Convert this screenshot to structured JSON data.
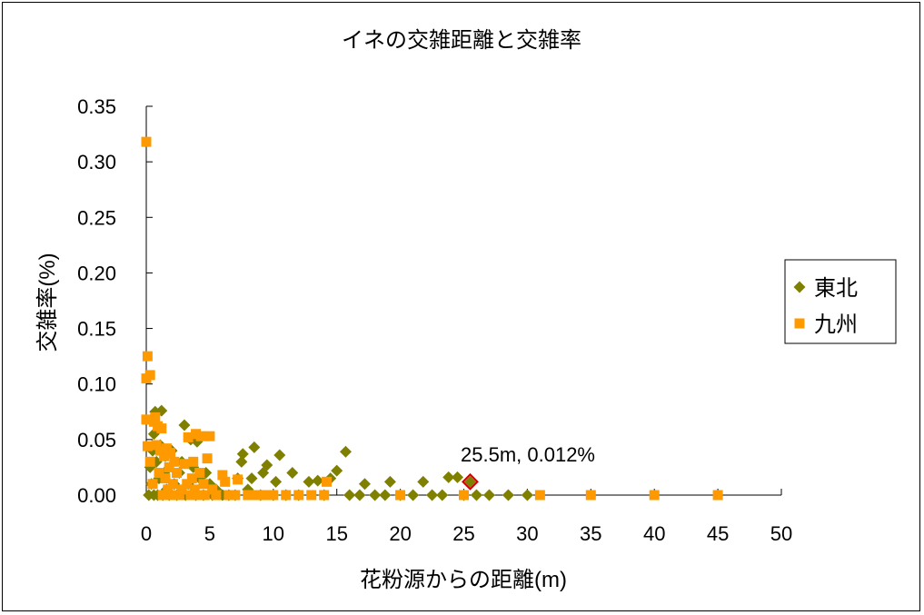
{
  "chart_data": {
    "type": "scatter",
    "title": "イネの交雑距離と交雑率",
    "xlabel": "花粉源からの距離(m)",
    "ylabel": "交雑率(%)",
    "xlim": [
      0,
      50
    ],
    "ylim": [
      0,
      0.35
    ],
    "xticks": [
      "0",
      "5",
      "10",
      "15",
      "20",
      "25",
      "30",
      "35",
      "40",
      "45",
      "50"
    ],
    "yticks": [
      "0.00",
      "0.05",
      "0.10",
      "0.15",
      "0.20",
      "0.25",
      "0.30",
      "0.35"
    ],
    "grid": false,
    "legend_position": "right",
    "annotation": {
      "text": "25.5m, 0.012%",
      "x": 25.5,
      "y": 0.012,
      "color": "#cc0000"
    },
    "series": [
      {
        "name": "東北",
        "marker": "diamond",
        "color": "#808000",
        "points": [
          [
            0.2,
            0.0
          ],
          [
            0.3,
            0.025
          ],
          [
            0.4,
            0.01
          ],
          [
            0.5,
            0.04
          ],
          [
            0.6,
            0.0
          ],
          [
            0.6,
            0.055
          ],
          [
            0.7,
            0.075
          ],
          [
            0.8,
            0.03
          ],
          [
            0.9,
            0.0
          ],
          [
            1.0,
            0.015
          ],
          [
            1.1,
            0.045
          ],
          [
            1.2,
            0.076
          ],
          [
            1.3,
            0.0
          ],
          [
            1.4,
            0.02
          ],
          [
            1.5,
            0.035
          ],
          [
            1.6,
            0.005
          ],
          [
            1.8,
            0.0
          ],
          [
            2.0,
            0.04
          ],
          [
            2.2,
            0.01
          ],
          [
            2.4,
            0.0
          ],
          [
            2.6,
            0.02
          ],
          [
            2.8,
            0.03
          ],
          [
            3.0,
            0.063
          ],
          [
            3.1,
            0.0
          ],
          [
            3.3,
            0.01
          ],
          [
            3.5,
            0.05
          ],
          [
            3.7,
            0.025
          ],
          [
            3.9,
            0.0
          ],
          [
            4.0,
            0.048
          ],
          [
            4.2,
            0.015
          ],
          [
            4.5,
            0.0
          ],
          [
            4.7,
            0.02
          ],
          [
            5.0,
            0.01
          ],
          [
            5.2,
            0.0
          ],
          [
            5.5,
            0.005
          ],
          [
            6.0,
            0.0
          ],
          [
            6.5,
            0.0
          ],
          [
            7.0,
            0.0
          ],
          [
            7.2,
            0.015
          ],
          [
            7.5,
            0.03
          ],
          [
            7.6,
            0.037
          ],
          [
            8.0,
            0.005
          ],
          [
            8.3,
            0.015
          ],
          [
            8.5,
            0.043
          ],
          [
            9.0,
            0.0
          ],
          [
            9.2,
            0.02
          ],
          [
            9.5,
            0.027
          ],
          [
            10.0,
            0.0
          ],
          [
            10.2,
            0.012
          ],
          [
            10.5,
            0.036
          ],
          [
            11.0,
            0.0
          ],
          [
            11.5,
            0.02
          ],
          [
            12.0,
            0.0
          ],
          [
            12.8,
            0.012
          ],
          [
            13.5,
            0.013
          ],
          [
            14.0,
            0.0
          ],
          [
            14.5,
            0.015
          ],
          [
            15.0,
            0.022
          ],
          [
            15.7,
            0.039
          ],
          [
            16.0,
            0.0
          ],
          [
            16.8,
            0.0
          ],
          [
            17.2,
            0.01
          ],
          [
            18.0,
            0.0
          ],
          [
            18.8,
            0.0
          ],
          [
            19.2,
            0.012
          ],
          [
            20.0,
            0.0
          ],
          [
            21.0,
            0.0
          ],
          [
            21.8,
            0.012
          ],
          [
            22.5,
            0.0
          ],
          [
            23.3,
            0.0
          ],
          [
            23.8,
            0.016
          ],
          [
            24.5,
            0.016
          ],
          [
            25.0,
            0.0
          ],
          [
            25.5,
            0.012
          ],
          [
            26.0,
            0.0
          ],
          [
            27.0,
            0.0
          ],
          [
            28.5,
            0.0
          ],
          [
            30.0,
            0.0
          ]
        ]
      },
      {
        "name": "九州",
        "marker": "square",
        "color": "#ff9900",
        "points": [
          [
            0.0,
            0.318
          ],
          [
            0.1,
            0.125
          ],
          [
            0.0,
            0.105
          ],
          [
            0.3,
            0.108
          ],
          [
            0.0,
            0.068
          ],
          [
            0.1,
            0.044
          ],
          [
            0.3,
            0.03
          ],
          [
            0.5,
            0.01
          ],
          [
            0.6,
            0.066
          ],
          [
            0.7,
            0.07
          ],
          [
            0.8,
            0.045
          ],
          [
            0.9,
            0.062
          ],
          [
            1.0,
            0.02
          ],
          [
            1.1,
            0.04
          ],
          [
            1.2,
            0.06
          ],
          [
            1.3,
            0.0
          ],
          [
            1.4,
            0.035
          ],
          [
            1.5,
            0.015
          ],
          [
            1.6,
            0.042
          ],
          [
            1.7,
            0.005
          ],
          [
            1.8,
            0.025
          ],
          [
            1.9,
            0.038
          ],
          [
            2.0,
            0.0
          ],
          [
            2.1,
            0.01
          ],
          [
            2.2,
            0.03
          ],
          [
            2.4,
            0.02
          ],
          [
            2.6,
            0.0
          ],
          [
            2.8,
            0.005
          ],
          [
            3.0,
            0.028
          ],
          [
            3.2,
            0.01
          ],
          [
            3.3,
            0.052
          ],
          [
            3.5,
            0.0
          ],
          [
            3.6,
            0.015
          ],
          [
            3.7,
            0.03
          ],
          [
            3.8,
            0.005
          ],
          [
            3.9,
            0.055
          ],
          [
            4.0,
            0.0
          ],
          [
            4.2,
            0.02
          ],
          [
            4.3,
            0.053
          ],
          [
            4.5,
            0.01
          ],
          [
            4.6,
            0.0
          ],
          [
            4.8,
            0.033
          ],
          [
            5.0,
            0.053
          ],
          [
            5.2,
            0.005
          ],
          [
            5.5,
            0.0
          ],
          [
            6.0,
            0.018
          ],
          [
            6.2,
            0.012
          ],
          [
            6.5,
            0.0
          ],
          [
            7.0,
            0.0
          ],
          [
            7.2,
            0.014
          ],
          [
            8.0,
            0.0
          ],
          [
            8.5,
            0.0
          ],
          [
            9.0,
            0.0
          ],
          [
            9.5,
            0.0
          ],
          [
            10.0,
            0.0
          ],
          [
            11.0,
            0.0
          ],
          [
            12.0,
            0.0
          ],
          [
            13.0,
            0.0
          ],
          [
            14.0,
            0.0
          ],
          [
            14.2,
            0.012
          ],
          [
            20.0,
            0.0
          ],
          [
            25.0,
            0.0
          ],
          [
            31.0,
            0.0
          ],
          [
            35.0,
            0.0
          ],
          [
            40.0,
            0.0
          ],
          [
            45.0,
            0.0
          ]
        ]
      }
    ]
  }
}
